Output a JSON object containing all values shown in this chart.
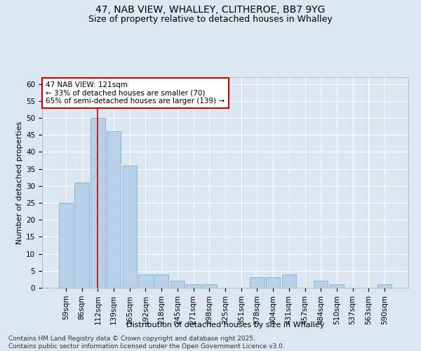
{
  "title1": "47, NAB VIEW, WHALLEY, CLITHEROE, BB7 9YG",
  "title2": "Size of property relative to detached houses in Whalley",
  "xlabel": "Distribution of detached houses by size in Whalley",
  "ylabel": "Number of detached properties",
  "categories": [
    "59sqm",
    "86sqm",
    "112sqm",
    "139sqm",
    "165sqm",
    "192sqm",
    "218sqm",
    "245sqm",
    "271sqm",
    "298sqm",
    "325sqm",
    "351sqm",
    "378sqm",
    "404sqm",
    "431sqm",
    "457sqm",
    "484sqm",
    "510sqm",
    "537sqm",
    "563sqm",
    "590sqm"
  ],
  "values": [
    25,
    31,
    50,
    46,
    36,
    4,
    4,
    2,
    1,
    1,
    0,
    0,
    3,
    3,
    4,
    0,
    2,
    1,
    0,
    0,
    1
  ],
  "bar_color": "#b8d0e8",
  "bar_edge_color": "#7bafd4",
  "highlight_index": 2,
  "highlight_color": "#cc0000",
  "annotation_line1": "47 NAB VIEW: 121sqm",
  "annotation_line2": "← 33% of detached houses are smaller (70)",
  "annotation_line3": "65% of semi-detached houses are larger (139) →",
  "annotation_box_color": "#ffffff",
  "annotation_box_edge": "#cc0000",
  "ylim": [
    0,
    62
  ],
  "yticks": [
    0,
    5,
    10,
    15,
    20,
    25,
    30,
    35,
    40,
    45,
    50,
    55,
    60
  ],
  "footer1": "Contains HM Land Registry data © Crown copyright and database right 2025.",
  "footer2": "Contains public sector information licensed under the Open Government Licence v3.0.",
  "bg_color": "#dce6f1",
  "plot_bg_color": "#dce6f1",
  "grid_color": "#ffffff",
  "title_fontsize": 10,
  "subtitle_fontsize": 9,
  "axis_label_fontsize": 8,
  "tick_fontsize": 7.5,
  "annotation_fontsize": 7.5,
  "footer_fontsize": 6.5
}
